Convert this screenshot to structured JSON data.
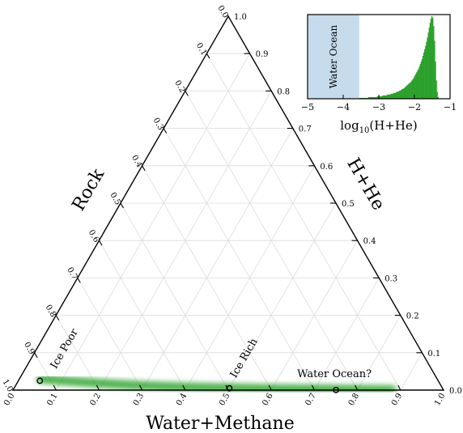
{
  "chart_data": [
    {
      "type": "ternary",
      "axes": {
        "bottom": {
          "label": "Water+Methane",
          "ticks": [
            "0.0",
            "0.1",
            "0.2",
            "0.3",
            "0.4",
            "0.5",
            "0.6",
            "0.7",
            "0.8",
            "0.9",
            "1.0"
          ]
        },
        "right": {
          "label": "H+He",
          "ticks": [
            "0.0",
            "0.1",
            "0.2",
            "0.3",
            "0.4",
            "0.5",
            "0.6",
            "0.7",
            "0.8",
            "0.9",
            "1.0"
          ]
        },
        "left": {
          "label": "Rock",
          "ticks": [
            "0.0",
            "0.1",
            "0.2",
            "0.3",
            "0.4",
            "0.5",
            "0.6",
            "0.7",
            "0.8",
            "0.9",
            "1.0"
          ]
        }
      },
      "grid": true,
      "band_color": "#2ca02c",
      "band": [
        {
          "water_methane": 0.05,
          "hhe": 0.03
        },
        {
          "water_methane": 0.1,
          "hhe": 0.025
        },
        {
          "water_methane": 0.2,
          "hhe": 0.018
        },
        {
          "water_methane": 0.3,
          "hhe": 0.012
        },
        {
          "water_methane": 0.4,
          "hhe": 0.008
        },
        {
          "water_methane": 0.5,
          "hhe": 0.006
        },
        {
          "water_methane": 0.6,
          "hhe": 0.004
        },
        {
          "water_methane": 0.7,
          "hhe": 0.003
        },
        {
          "water_methane": 0.8,
          "hhe": 0.002
        },
        {
          "water_methane": 0.88,
          "hhe": 0.001
        }
      ],
      "markers": [
        {
          "label": "Ice Poor",
          "water_methane": 0.05,
          "hhe": 0.025
        },
        {
          "label": "Ice Rich",
          "water_methane": 0.5,
          "hhe": 0.005
        },
        {
          "label": "Water Ocean?",
          "water_methane": 0.75,
          "hhe": 0.0003
        }
      ]
    },
    {
      "type": "histogram",
      "xlabel": "log10(H+He)",
      "xlim": [
        -5,
        -1
      ],
      "xticks": [
        "−5",
        "−4",
        "−3",
        "−2",
        "−1"
      ],
      "bar_color": "#2ca02c",
      "shaded_region": {
        "label": "Water Ocean",
        "x_range": [
          -5,
          -3.55
        ],
        "color": "#c6dcec"
      },
      "bin_start": -3.55,
      "bin_width": 0.025,
      "values": [
        0.01,
        0.01,
        0.01,
        0.01,
        0.01,
        0.01,
        0.01,
        0.01,
        0.01,
        0.01,
        0.02,
        0.02,
        0.02,
        0.02,
        0.02,
        0.02,
        0.02,
        0.02,
        0.02,
        0.02,
        0.03,
        0.03,
        0.03,
        0.03,
        0.03,
        0.03,
        0.04,
        0.04,
        0.04,
        0.04,
        0.04,
        0.05,
        0.05,
        0.05,
        0.05,
        0.06,
        0.06,
        0.06,
        0.07,
        0.07,
        0.07,
        0.08,
        0.08,
        0.09,
        0.09,
        0.1,
        0.1,
        0.11,
        0.12,
        0.12,
        0.13,
        0.14,
        0.15,
        0.16,
        0.17,
        0.18,
        0.19,
        0.2,
        0.21,
        0.23,
        0.24,
        0.26,
        0.28,
        0.3,
        0.32,
        0.34,
        0.36,
        0.39,
        0.42,
        0.45,
        0.48,
        0.52,
        0.56,
        0.6,
        0.64,
        0.69,
        0.74,
        0.8,
        0.86,
        0.92,
        0.97,
        1.0,
        0.98,
        0.88,
        0.7,
        0.45,
        0.22,
        0.08,
        0.02
      ]
    }
  ]
}
